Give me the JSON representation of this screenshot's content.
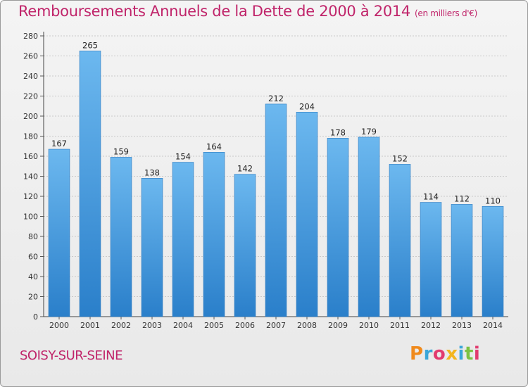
{
  "title": {
    "main": "Remboursements Annuels de la Dette de 2000 à 2014",
    "unit": "(en milliers d'€)"
  },
  "footer": {
    "city": "SOISY-SUR-SEINE",
    "logo": "Proxiti"
  },
  "colors": {
    "title": "#c0246a",
    "bar_top": "#6cb8ef",
    "bar_bottom": "#2a7fca"
  },
  "chart_data": {
    "type": "bar",
    "title": "Remboursements Annuels de la Dette de 2000 à 2014",
    "xlabel": "",
    "ylabel": "",
    "categories": [
      "2000",
      "2001",
      "2002",
      "2003",
      "2004",
      "2005",
      "2006",
      "2007",
      "2008",
      "2009",
      "2010",
      "2011",
      "2012",
      "2013",
      "2014"
    ],
    "values": [
      167,
      265,
      159,
      138,
      154,
      164,
      142,
      212,
      204,
      178,
      179,
      152,
      114,
      112,
      110
    ],
    "ylim": [
      0,
      280
    ],
    "yticks": [
      0,
      20,
      40,
      60,
      80,
      100,
      120,
      140,
      160,
      180,
      200,
      220,
      240,
      260,
      280
    ],
    "grid": true
  }
}
